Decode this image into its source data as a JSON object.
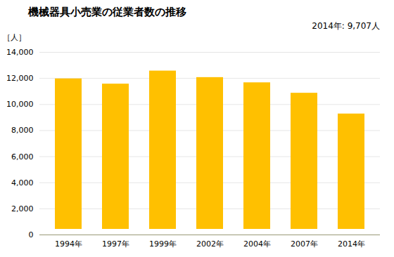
{
  "chart_data": {
    "type": "bar",
    "title": "機械器具小売業の従業者数の推移",
    "ylabel": "［人］",
    "annotation": "2014年: 9,707人",
    "categories": [
      "1994年",
      "1997年",
      "1999年",
      "2002年",
      "2004年",
      "2007年",
      "2014年"
    ],
    "values": [
      12400,
      12000,
      13000,
      12500,
      12100,
      11300,
      9707
    ],
    "color": "#FFC000",
    "ylim": [
      0,
      14000
    ],
    "yticks": [
      0,
      {
        "value": 2000,
        "label": "2,000"
      },
      {
        "value": 4000,
        "label": "4,000"
      },
      {
        "value": 6000,
        "label": "6,000"
      },
      {
        "value": 8000,
        "label": "8,000"
      },
      {
        "value": 10000,
        "label": "10,000"
      },
      {
        "value": 12000,
        "label": "12,000"
      },
      {
        "value": 14000,
        "label": "14,000"
      }
    ],
    "grid": true
  }
}
